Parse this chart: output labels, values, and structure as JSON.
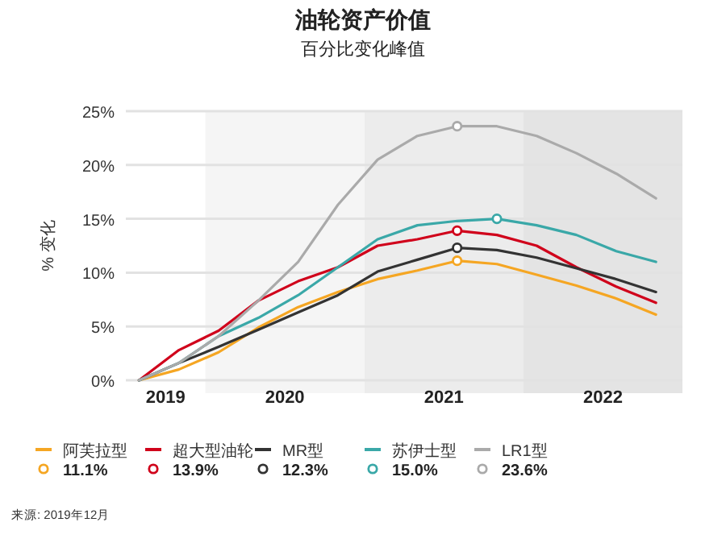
{
  "chart_data": {
    "type": "line",
    "title": "油轮资产价值",
    "subtitle": "百分比变化峰值",
    "ylabel": "% 变化",
    "x": [
      "2019-08",
      "2019-11",
      "2020-02",
      "2020-05",
      "2020-08",
      "2020-11",
      "2021-02",
      "2021-05",
      "2021-08",
      "2021-11",
      "2022-02",
      "2022-05",
      "2022-08",
      "2022-11"
    ],
    "series": [
      {
        "name": "阿芙拉型",
        "color": "#f5a623",
        "values": [
          0,
          1.0,
          2.6,
          4.9,
          6.8,
          8.2,
          9.4,
          10.2,
          11.1,
          10.8,
          9.8,
          8.8,
          7.6,
          6.1
        ]
      },
      {
        "name": "超大型油轮",
        "color": "#d0021b",
        "values": [
          0,
          2.8,
          4.6,
          7.4,
          9.2,
          10.5,
          12.5,
          13.1,
          13.9,
          13.5,
          12.5,
          10.5,
          8.7,
          7.2
        ]
      },
      {
        "name": "MR型",
        "color": "#333333",
        "values": [
          0,
          1.6,
          3.1,
          4.7,
          6.3,
          7.9,
          10.1,
          11.2,
          12.3,
          12.1,
          11.4,
          10.4,
          9.4,
          8.2
        ]
      },
      {
        "name": "苏伊士型",
        "color": "#3aa8a8",
        "values": [
          0,
          1.6,
          4.1,
          5.8,
          7.9,
          10.5,
          13.1,
          14.4,
          14.8,
          15.0,
          14.4,
          13.5,
          12.0,
          11.0
        ]
      },
      {
        "name": "LR1型",
        "color": "#aaaaaa",
        "values": [
          0,
          1.6,
          4.1,
          7.4,
          11.0,
          16.3,
          20.5,
          22.7,
          23.6,
          23.6,
          22.7,
          21.1,
          19.2,
          16.9
        ]
      },
      {
        "type": "scatter",
        "marker": "circle",
        "name": "11.1%",
        "color": "#f5a623",
        "x": [
          "2021-08"
        ],
        "values": [
          11.1
        ]
      },
      {
        "type": "scatter",
        "marker": "circle",
        "name": "13.9%",
        "color": "#d0021b",
        "x": [
          "2021-08"
        ],
        "values": [
          13.9
        ]
      },
      {
        "type": "scatter",
        "marker": "circle",
        "name": "12.3%",
        "color": "#333333",
        "x": [
          "2021-08"
        ],
        "values": [
          12.3
        ]
      },
      {
        "type": "scatter",
        "marker": "circle",
        "name": "15.0%",
        "color": "#3aa8a8",
        "x": [
          "2021-11"
        ],
        "values": [
          15.0
        ]
      },
      {
        "type": "scatter",
        "marker": "circle",
        "name": "23.6%",
        "color": "#aaaaaa",
        "x": [
          "2021-08"
        ],
        "values": [
          23.6
        ]
      }
    ],
    "xlim": [
      "2019-07",
      "2023-01"
    ],
    "xticks": [
      {
        "value": "2019-10",
        "label": "2019"
      },
      {
        "value": "2020-07",
        "label": "2020"
      },
      {
        "value": "2021-07",
        "label": "2021"
      },
      {
        "value": "2022-07",
        "label": "2022"
      }
    ],
    "ylim": [
      0,
      25
    ],
    "yticks": [
      {
        "value": 0,
        "label": "0%"
      },
      {
        "value": 5,
        "label": "5%"
      },
      {
        "value": 10,
        "label": "10%"
      },
      {
        "value": 15,
        "label": "15%"
      },
      {
        "value": 20,
        "label": "20%"
      },
      {
        "value": 25,
        "label": "25%"
      }
    ],
    "bands": [
      {
        "axis": "x",
        "from": "2020-01",
        "to": "2021-01",
        "color": "#f5f5f5"
      },
      {
        "axis": "x",
        "from": "2021-01",
        "to": "2022-01",
        "color": "#ececec"
      },
      {
        "axis": "x",
        "from": "2022-01",
        "to": "2023-01",
        "color": "#e4e4e4"
      }
    ],
    "grid": "y",
    "legend": "bottom",
    "annotations": [
      "来源: 2019年12月"
    ]
  }
}
